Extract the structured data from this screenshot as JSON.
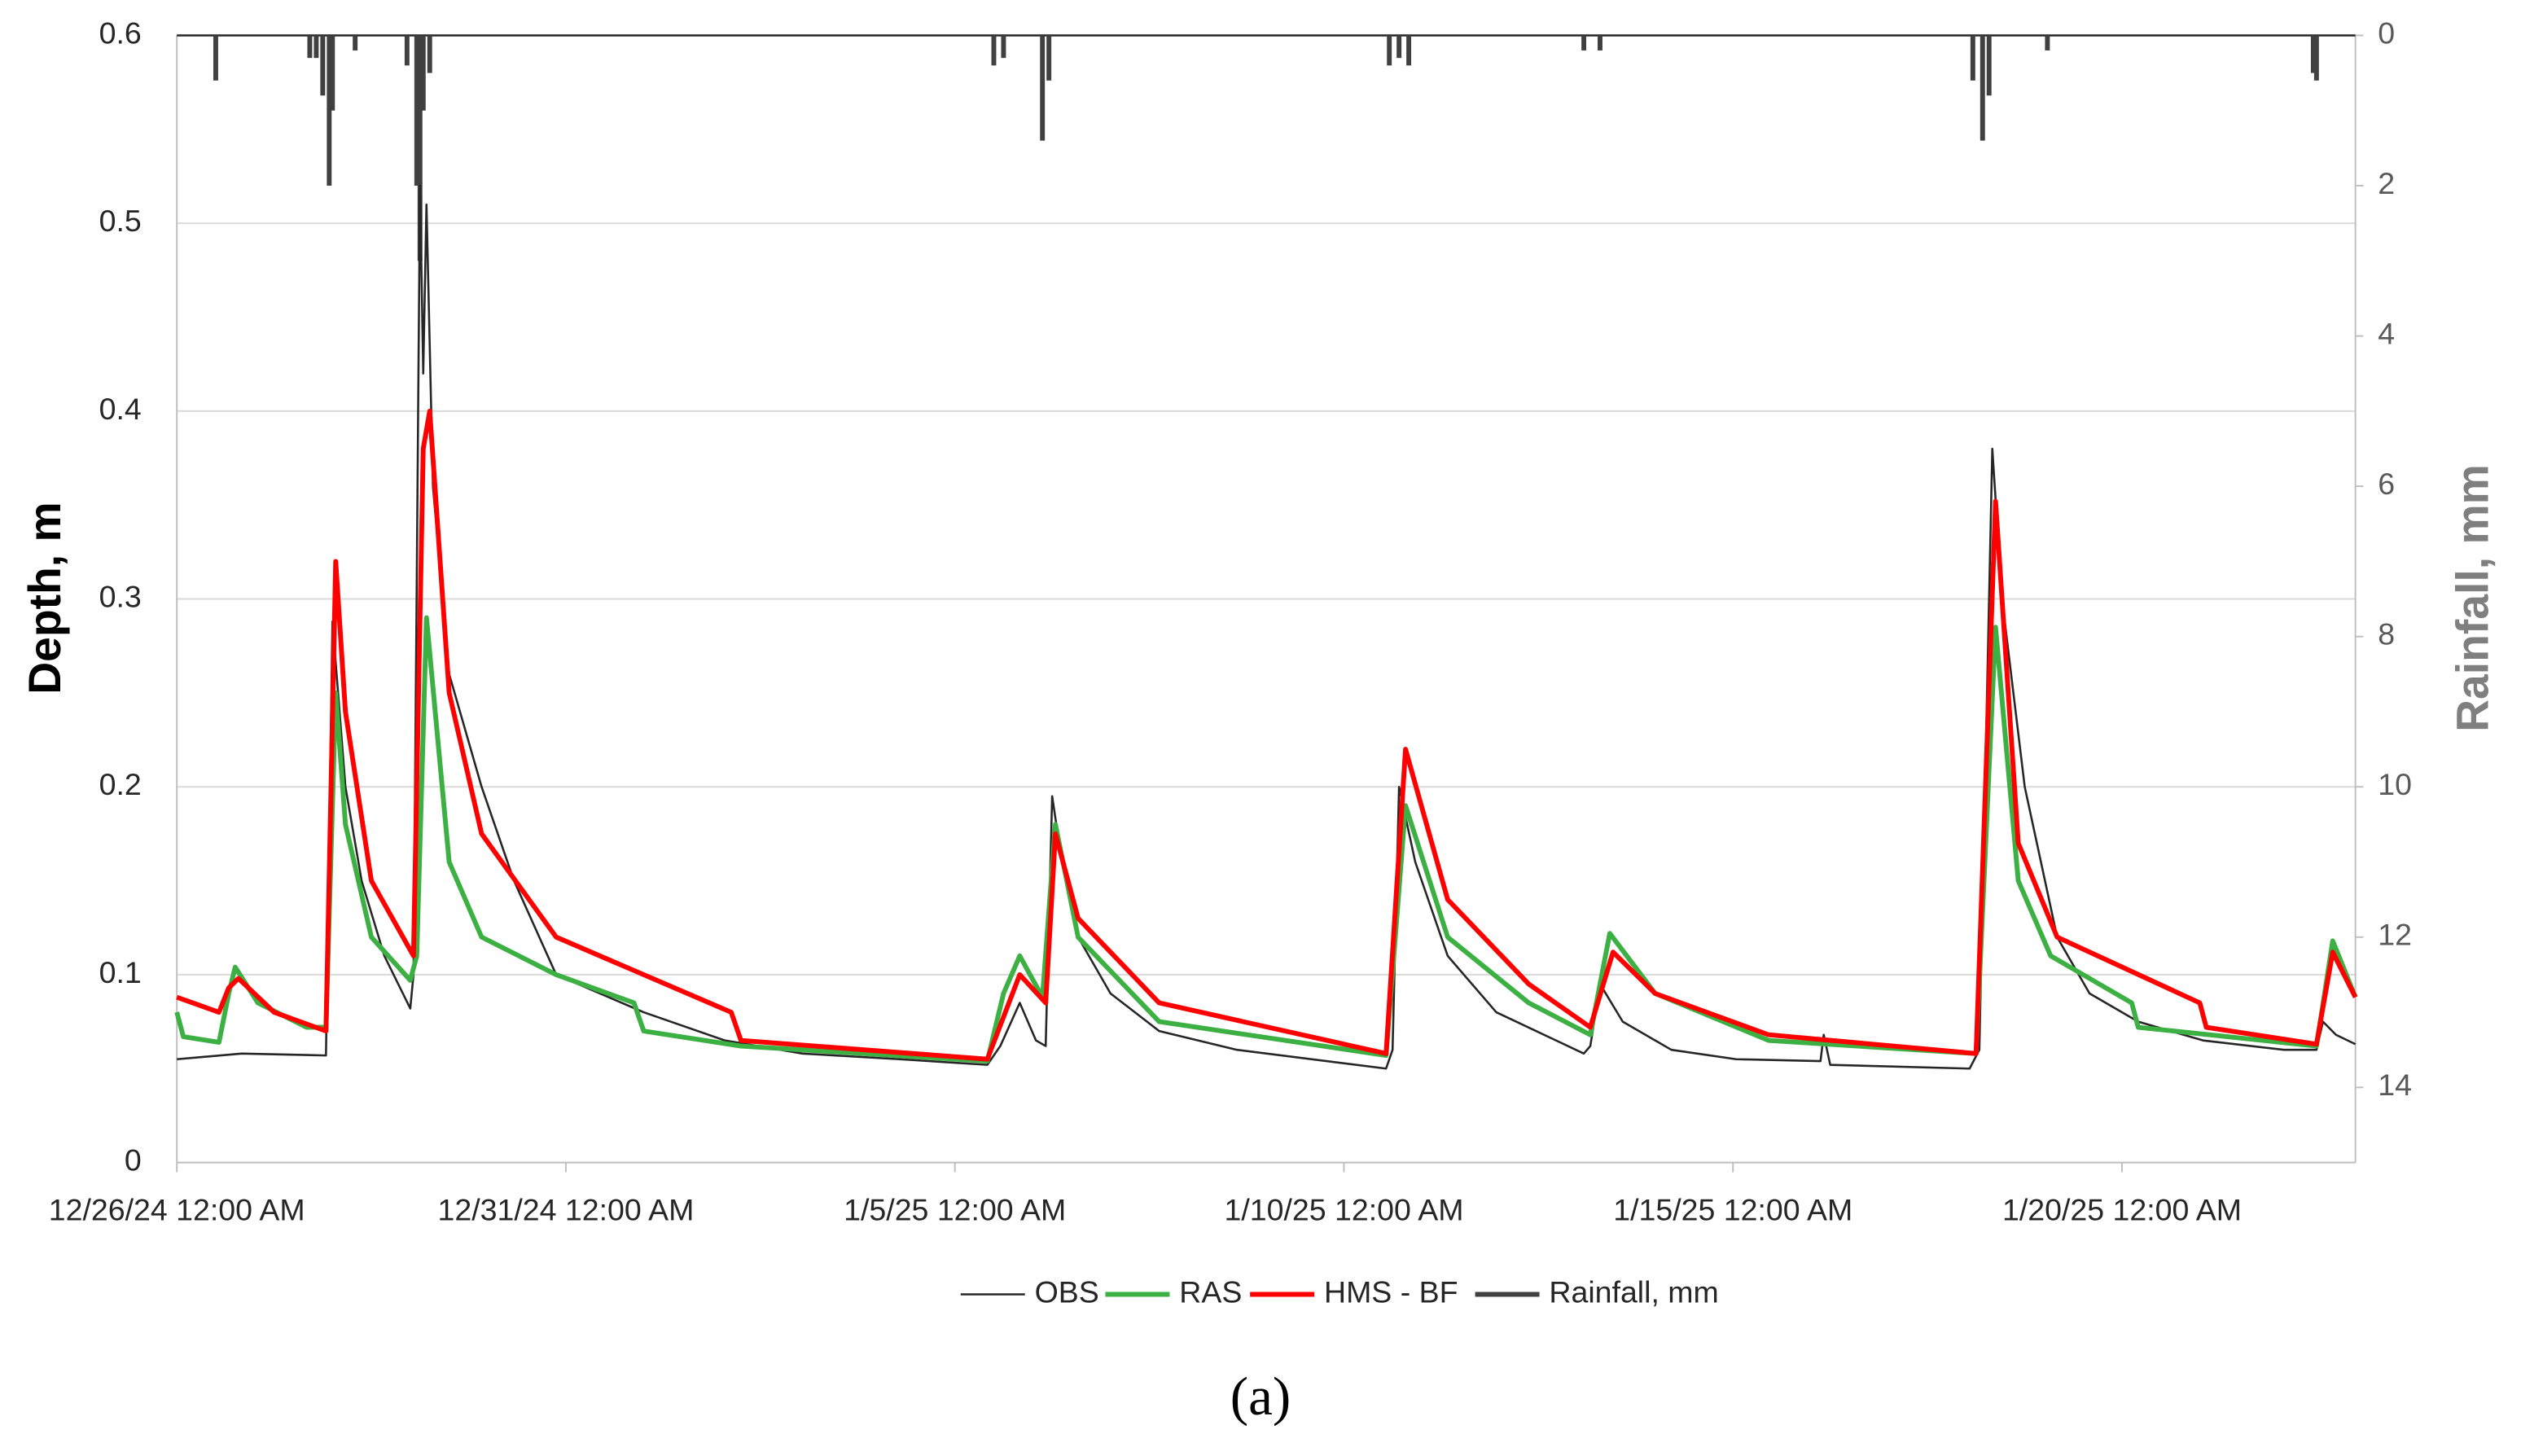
{
  "chart_data": {
    "type": "line",
    "y_label": "Depth, m",
    "y2_label": "Rainfall, mm",
    "caption": "(a)",
    "xlim": [
      "2024-12-26T00:00",
      "2025-01-23T00:00"
    ],
    "xticks": [
      {
        "value": "2024-12-26T00:00",
        "label": "12/26/24 12:00 AM"
      },
      {
        "value": "2024-12-31T00:00",
        "label": "12/31/24 12:00 AM"
      },
      {
        "value": "2025-01-05T00:00",
        "label": "1/5/25 12:00 AM"
      },
      {
        "value": "2025-01-10T00:00",
        "label": "1/10/25 12:00 AM"
      },
      {
        "value": "2025-01-15T00:00",
        "label": "1/15/25 12:00 AM"
      },
      {
        "value": "2025-01-20T00:00",
        "label": "1/20/25 12:00 AM"
      }
    ],
    "ylim": [
      0,
      0.6
    ],
    "yticks": [
      0,
      0.1,
      0.2,
      0.3,
      0.4,
      0.5,
      0.6
    ],
    "y2lim": [
      0,
      15
    ],
    "y2ticks": [
      0,
      2,
      4,
      6,
      8,
      10,
      12,
      14
    ],
    "y2_inverted": true,
    "grid": true,
    "legend": "bottom",
    "series": [
      {
        "name": "OBS",
        "color": "#262626",
        "width": 1.3,
        "x": [
          "2024-12-26T00:00",
          "2024-12-26T20:00",
          "2024-12-27T22:00",
          "2024-12-28T00:00",
          "2024-12-28T04:00",
          "2024-12-28T09:00",
          "2024-12-28T16:00",
          "2024-12-29T00:00",
          "2024-12-29T01:00",
          "2024-12-29T03:00",
          "2024-12-29T04:00",
          "2024-12-29T05:00",
          "2024-12-29T07:00",
          "2024-12-29T12:00",
          "2024-12-29T22:00",
          "2024-12-30T08:00",
          "2024-12-30T21:00",
          "2025-01-01T00:00",
          "2025-01-02T01:00",
          "2025-01-03T01:00",
          "2025-01-04T07:00",
          "2025-01-05T10:00",
          "2025-01-05T14:00",
          "2025-01-05T20:00",
          "2025-01-06T01:00",
          "2025-01-06T04:00",
          "2025-01-06T06:00",
          "2025-01-06T09:00",
          "2025-01-06T14:00",
          "2025-01-07T00:00",
          "2025-01-07T15:00",
          "2025-01-08T15:00",
          "2025-01-10T13:00",
          "2025-01-10T15:00",
          "2025-01-10T17:00",
          "2025-01-10T22:00",
          "2025-01-11T08:00",
          "2025-01-11T23:00",
          "2025-01-13T02:00",
          "2025-01-13T04:00",
          "2025-01-13T07:00",
          "2025-01-13T14:00",
          "2025-01-14T05:00",
          "2025-01-15T01:00",
          "2025-01-16T03:00",
          "2025-01-16T04:00",
          "2025-01-16T06:00",
          "2025-01-18T01:00",
          "2025-01-18T04:00",
          "2025-01-18T08:00",
          "2025-01-18T11:00",
          "2025-01-18T18:00",
          "2025-01-19T04:00",
          "2025-01-19T14:00",
          "2025-01-20T05:00",
          "2025-01-21T01:00",
          "2025-01-22T02:00",
          "2025-01-22T12:00",
          "2025-01-22T14:00",
          "2025-01-22T18:00",
          "2025-01-23T00:00"
        ],
        "values": [
          0.055,
          0.058,
          0.057,
          0.288,
          0.2,
          0.15,
          0.11,
          0.082,
          0.1,
          0.52,
          0.42,
          0.51,
          0.36,
          0.26,
          0.2,
          0.15,
          0.1,
          0.08,
          0.065,
          0.058,
          0.055,
          0.052,
          0.062,
          0.085,
          0.065,
          0.062,
          0.195,
          0.16,
          0.12,
          0.09,
          0.07,
          0.06,
          0.05,
          0.06,
          0.2,
          0.16,
          0.11,
          0.08,
          0.058,
          0.062,
          0.095,
          0.075,
          0.06,
          0.055,
          0.054,
          0.068,
          0.052,
          0.05,
          0.06,
          0.38,
          0.3,
          0.2,
          0.12,
          0.09,
          0.075,
          0.065,
          0.06,
          0.06,
          0.075,
          0.068,
          0.063
        ]
      },
      {
        "name": "RAS",
        "color": "#3cb043",
        "width": 3,
        "x": [
          "2024-12-26T00:00",
          "2024-12-26T02:00",
          "2024-12-26T13:00",
          "2024-12-26T16:00",
          "2024-12-26T18:00",
          "2024-12-27T01:00",
          "2024-12-27T16:00",
          "2024-12-27T22:00",
          "2024-12-28T01:00",
          "2024-12-28T04:00",
          "2024-12-28T12:00",
          "2024-12-29T00:00",
          "2024-12-29T02:00",
          "2024-12-29T05:00",
          "2024-12-29T12:00",
          "2024-12-29T22:00",
          "2024-12-30T21:00",
          "2024-12-31T21:00",
          "2025-01-01T00:00",
          "2025-01-02T06:00",
          "2025-01-05T10:00",
          "2025-01-05T15:00",
          "2025-01-05T20:00",
          "2025-01-06T03:00",
          "2025-01-06T07:00",
          "2025-01-06T14:00",
          "2025-01-07T15:00",
          "2025-01-10T13:00",
          "2025-01-10T19:00",
          "2025-01-11T08:00",
          "2025-01-12T09:00",
          "2025-01-13T04:00",
          "2025-01-13T10:00",
          "2025-01-14T00:00",
          "2025-01-15T11:00",
          "2025-01-18T03:00",
          "2025-01-18T09:00",
          "2025-01-18T16:00",
          "2025-01-19T02:00",
          "2025-01-20T03:00",
          "2025-01-20T05:00",
          "2025-01-22T12:00",
          "2025-01-22T17:00",
          "2025-01-23T00:00"
        ],
        "values": [
          0.08,
          0.067,
          0.064,
          0.09,
          0.104,
          0.085,
          0.072,
          0.072,
          0.25,
          0.18,
          0.12,
          0.097,
          0.11,
          0.29,
          0.16,
          0.12,
          0.1,
          0.085,
          0.07,
          0.062,
          0.054,
          0.09,
          0.11,
          0.088,
          0.18,
          0.12,
          0.075,
          0.057,
          0.19,
          0.12,
          0.085,
          0.068,
          0.122,
          0.09,
          0.065,
          0.058,
          0.285,
          0.15,
          0.11,
          0.085,
          0.072,
          0.062,
          0.118,
          0.088
        ]
      },
      {
        "name": "HMS - BF",
        "color": "#ff0000",
        "width": 3,
        "x": [
          "2024-12-26T00:00",
          "2024-12-26T13:00",
          "2024-12-26T16:00",
          "2024-12-26T19:00",
          "2024-12-27T06:00",
          "2024-12-27T22:00",
          "2024-12-28T01:00",
          "2024-12-28T04:00",
          "2024-12-28T12:00",
          "2024-12-29T01:00",
          "2024-12-29T04:00",
          "2024-12-29T06:00",
          "2024-12-29T12:00",
          "2024-12-29T22:00",
          "2024-12-30T21:00",
          "2025-01-02T03:00",
          "2025-01-02T06:00",
          "2025-01-05T10:00",
          "2025-01-05T20:00",
          "2025-01-06T04:00",
          "2025-01-06T07:00",
          "2025-01-06T14:00",
          "2025-01-07T15:00",
          "2025-01-10T13:00",
          "2025-01-10T19:00",
          "2025-01-11T08:00",
          "2025-01-12T09:00",
          "2025-01-13T04:00",
          "2025-01-13T11:00",
          "2025-01-14T00:00",
          "2025-01-15T11:00",
          "2025-01-18T03:00",
          "2025-01-18T09:00",
          "2025-01-18T16:00",
          "2025-01-19T04:00",
          "2025-01-21T00:00",
          "2025-01-21T02:00",
          "2025-01-22T12:00",
          "2025-01-22T17:00",
          "2025-01-23T00:00"
        ],
        "values": [
          0.088,
          0.08,
          0.093,
          0.098,
          0.08,
          0.07,
          0.32,
          0.24,
          0.15,
          0.11,
          0.38,
          0.4,
          0.25,
          0.175,
          0.12,
          0.08,
          0.065,
          0.055,
          0.1,
          0.085,
          0.175,
          0.13,
          0.085,
          0.058,
          0.22,
          0.14,
          0.095,
          0.072,
          0.112,
          0.09,
          0.068,
          0.058,
          0.352,
          0.17,
          0.12,
          0.085,
          0.072,
          0.063,
          0.112,
          0.088
        ]
      },
      {
        "name": "Rainfall, mm",
        "color": "#404040",
        "width": 3,
        "axis": "y2",
        "type": "bar",
        "x": [
          "2024-12-26T12:00",
          "2024-12-27T17:00",
          "2024-12-27T19:00",
          "2024-12-27T21:00",
          "2024-12-27T23:00",
          "2024-12-28T00:00",
          "2024-12-28T07:00",
          "2024-12-28T23:00",
          "2024-12-29T02:00",
          "2024-12-29T03:00",
          "2024-12-29T04:00",
          "2024-12-29T06:00",
          "2025-01-05T12:00",
          "2025-01-05T15:00",
          "2025-01-06T03:00",
          "2025-01-06T05:00",
          "2025-01-10T14:00",
          "2025-01-10T17:00",
          "2025-01-10T20:00",
          "2025-01-13T02:00",
          "2025-01-13T07:00",
          "2025-01-18T02:00",
          "2025-01-18T05:00",
          "2025-01-18T07:00",
          "2025-01-19T01:00",
          "2025-01-22T11:00",
          "2025-01-22T12:00"
        ],
        "values": [
          0.6,
          0.3,
          0.3,
          0.8,
          2.0,
          1.0,
          0.2,
          0.4,
          2.0,
          3.0,
          1.0,
          0.5,
          0.4,
          0.3,
          1.4,
          0.6,
          0.4,
          0.3,
          0.4,
          0.2,
          0.2,
          0.6,
          1.4,
          0.8,
          0.2,
          0.5,
          0.6
        ]
      }
    ]
  }
}
